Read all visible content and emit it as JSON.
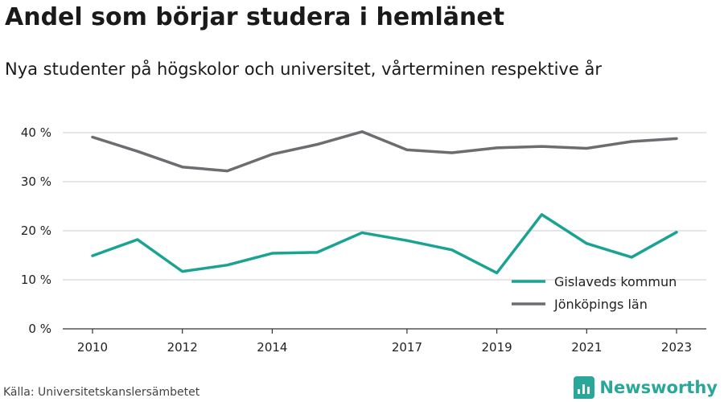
{
  "title": "Andel som börjar studera i hemlänet",
  "subtitle": "Nya studenter på högskolor och universitet, vårterminen respektive år",
  "source": "Källa: Universitetskanslersämbetet",
  "brand": "Newsworthy",
  "chart_data": {
    "type": "line",
    "x": [
      2010,
      2011,
      2012,
      2013,
      2014,
      2015,
      2016,
      2017,
      2018,
      2019,
      2020,
      2021,
      2022,
      2023
    ],
    "xticks": [
      2010,
      2012,
      2014,
      2017,
      2019,
      2021,
      2023
    ],
    "xlim": [
      2010,
      2023
    ],
    "yticks": [
      0,
      10,
      20,
      30,
      40
    ],
    "ytick_labels": [
      "0 %",
      "10 %",
      "20 %",
      "30 %",
      "40 %"
    ],
    "ylim": [
      0,
      40
    ],
    "grid": true,
    "legend_position": "bottom-right",
    "series": [
      {
        "name": "Gislaveds kommun",
        "color": "#1aa393",
        "values": [
          14.9,
          18.2,
          11.7,
          13.0,
          15.4,
          15.6,
          19.6,
          18.0,
          16.1,
          11.4,
          23.3,
          17.4,
          14.6,
          19.7
        ]
      },
      {
        "name": "Jönköpings län",
        "color": "#6e6c70",
        "values": [
          39.1,
          36.2,
          33.0,
          32.2,
          35.6,
          37.6,
          40.2,
          36.5,
          35.9,
          36.9,
          37.2,
          36.8,
          38.2,
          38.8
        ]
      }
    ]
  }
}
